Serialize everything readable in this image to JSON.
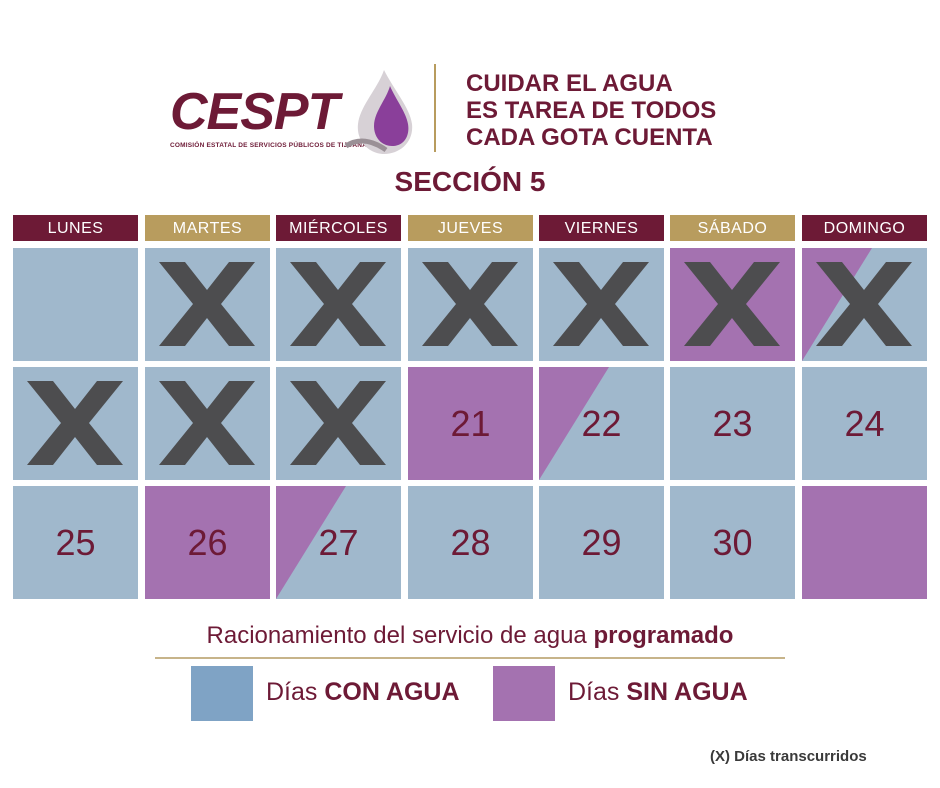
{
  "header": {
    "logo_text": "CESPT",
    "logo_subtitle": "COMISIÓN ESTATAL DE SERVICIOS PÚBLICOS DE TIJUANA",
    "slogan_lines": [
      "CUIDAR EL AGUA",
      "ES TAREA DE TODOS",
      "CADA GOTA CUENTA"
    ],
    "section_title": "SECCIÓN 5"
  },
  "colors": {
    "maroon": "#6d1a36",
    "gold": "#b89c5e",
    "con_agua": "#a0b8cc",
    "sin_agua": "#a472b0"
  },
  "weekdays": [
    "LUNES",
    "MARTES",
    "MIÉRCOLES",
    "JUEVES",
    "VIERNES",
    "SÁBADO",
    "DOMINGO"
  ],
  "calendar": {
    "rows": [
      [
        {
          "day": "",
          "state": "con",
          "crossed": false
        },
        {
          "day": "",
          "state": "con",
          "crossed": true
        },
        {
          "day": "",
          "state": "con",
          "crossed": true
        },
        {
          "day": "",
          "state": "con",
          "crossed": true
        },
        {
          "day": "",
          "state": "con",
          "crossed": true
        },
        {
          "day": "",
          "state": "sin",
          "crossed": true
        },
        {
          "day": "",
          "state": "split-sin-top",
          "crossed": true
        }
      ],
      [
        {
          "day": "",
          "state": "con",
          "crossed": true
        },
        {
          "day": "",
          "state": "con",
          "crossed": true
        },
        {
          "day": "",
          "state": "con",
          "crossed": true
        },
        {
          "day": "21",
          "state": "sin",
          "crossed": false
        },
        {
          "day": "22",
          "state": "split-sin-top",
          "crossed": false
        },
        {
          "day": "23",
          "state": "con",
          "crossed": false
        },
        {
          "day": "24",
          "state": "con",
          "crossed": false
        }
      ],
      [
        {
          "day": "25",
          "state": "con",
          "crossed": false
        },
        {
          "day": "26",
          "state": "sin",
          "crossed": false
        },
        {
          "day": "27",
          "state": "split-sin-top",
          "crossed": false
        },
        {
          "day": "28",
          "state": "con",
          "crossed": false
        },
        {
          "day": "29",
          "state": "con",
          "crossed": false
        },
        {
          "day": "30",
          "state": "con",
          "crossed": false
        },
        {
          "day": "",
          "state": "sin",
          "crossed": false
        }
      ]
    ]
  },
  "legend": {
    "caption_prefix": "Racionamiento del servicio de agua ",
    "caption_bold": "programado",
    "con_prefix": "Días ",
    "con_bold": "CON AGUA",
    "sin_prefix": "Días ",
    "sin_bold": "SIN AGUA",
    "footnote": "(X) Días transcurridos"
  }
}
